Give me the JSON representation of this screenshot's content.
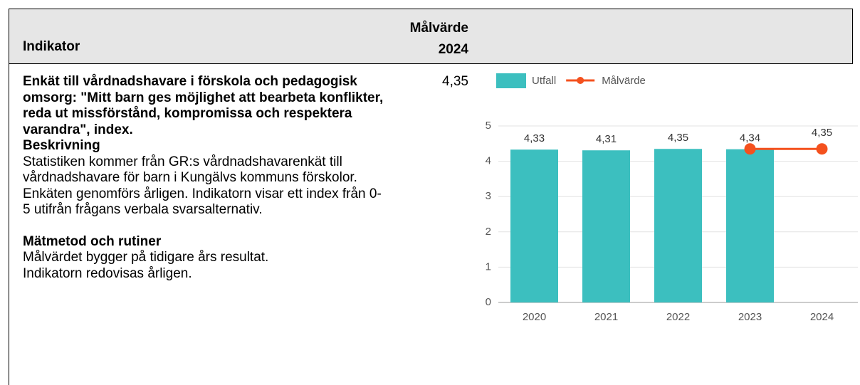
{
  "table": {
    "headers": [
      "Indikator",
      "Målvärde 2024"
    ],
    "rows": [
      {
        "indicator": "Enkät till vårdnadshavare i förskola och pedagogisk omsorg: \"Mitt barn ges möjlighet att bearbeta konflikter, reda ut missförstånd, kompromissa och respektera varandra\", index.",
        "description_heading": "Beskrivning",
        "description": "Statistiken kommer från GR:s vårdnadshavarenkät till vårdnadshavare för barn i Kungälvs kommuns förskolor. Enkäten genomförs årligen. Indikatorn visar ett index från 0-5 utifrån frågans verbala svarsalternativ.",
        "method_heading": "Mätmetod och rutiner",
        "method": [
          "Målvärdet bygger på tidigare års resultat.",
          "Indikatorn redovisas årligen."
        ],
        "target": "4,35"
      }
    ]
  },
  "chart_data": {
    "type": "bar",
    "categories": [
      "2020",
      "2021",
      "2022",
      "2023",
      "2024"
    ],
    "series": [
      {
        "name": "Utfall",
        "type": "bar",
        "color": "#3cbfbf",
        "values": [
          4.33,
          4.31,
          4.35,
          4.34,
          null
        ],
        "value_labels": [
          "4,33",
          "4,31",
          "4,35",
          "4,34",
          null
        ]
      },
      {
        "name": "Målvärde",
        "type": "line",
        "color": "#f4511e",
        "values": [
          null,
          null,
          null,
          4.35,
          4.35
        ],
        "value_labels": [
          null,
          null,
          null,
          null,
          "4,35"
        ]
      }
    ],
    "ylim": [
      0,
      5
    ],
    "yticks": [
      0,
      1,
      2,
      3,
      4,
      5
    ],
    "grid": true,
    "legend": "top-left"
  }
}
